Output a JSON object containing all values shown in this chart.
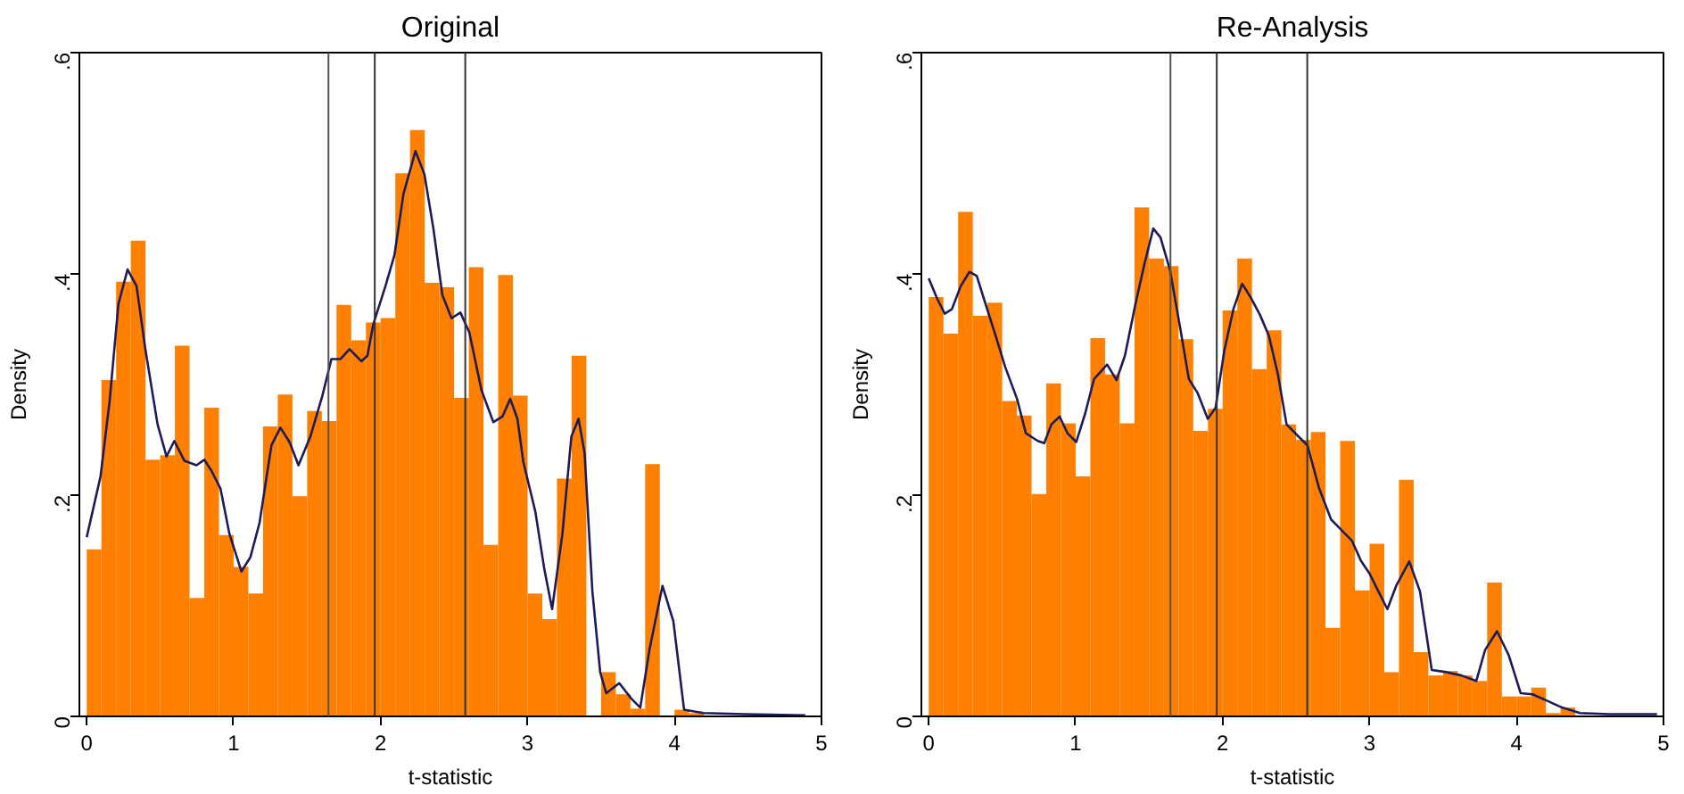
{
  "chart_data": [
    {
      "type": "histogram",
      "title": "Original",
      "xlabel": "t-statistic",
      "ylabel": "Density",
      "color": "#ff7f00",
      "bins": [
        0,
        0.1,
        0.2,
        0.3,
        0.4,
        0.5,
        0.6,
        0.7,
        0.8,
        0.9,
        1.0,
        1.1,
        1.2,
        1.3,
        1.4,
        1.5,
        1.6,
        1.7,
        1.8,
        1.9,
        2.0,
        2.1,
        2.2,
        2.3,
        2.4,
        2.5,
        2.6,
        2.7,
        2.8,
        2.9,
        3.0,
        3.1,
        3.2,
        3.3,
        3.4,
        3.5,
        3.6,
        3.7,
        3.8,
        3.9,
        4.0,
        4.1,
        4.2,
        4.3
      ],
      "values": [
        0.151,
        0.304,
        0.393,
        0.43,
        0.232,
        0.236,
        0.335,
        0.107,
        0.279,
        0.164,
        0.135,
        0.111,
        0.262,
        0.291,
        0.199,
        0.276,
        0.267,
        0.372,
        0.34,
        0.356,
        0.36,
        0.491,
        0.53,
        0.392,
        0.388,
        0.288,
        0.406,
        0.155,
        0.399,
        0.29,
        0.111,
        0.088,
        0.215,
        0.326,
        0,
        0.04,
        0.02,
        0.007,
        0.228,
        0,
        0.006,
        0.003,
        null
      ],
      "series": [
        {
          "type": "line",
          "color": "#1c1c5a",
          "x": [
            0,
            0.094,
            0.155,
            0.216,
            0.278,
            0.339,
            0.4,
            0.482,
            0.543,
            0.596,
            0.665,
            0.747,
            0.8,
            0.849,
            0.91,
            0.971,
            1.053,
            1.114,
            1.176,
            1.257,
            1.318,
            1.38,
            1.441,
            1.522,
            1.604,
            1.665,
            1.727,
            1.788,
            1.869,
            1.91,
            1.951,
            2.033,
            2.094,
            2.155,
            2.237,
            2.298,
            2.359,
            2.42,
            2.482,
            2.543,
            2.604,
            2.686,
            2.767,
            2.829,
            2.882,
            2.931,
            2.971,
            3.053,
            3.114,
            3.167,
            3.237,
            3.298,
            3.347,
            3.388,
            3.441,
            3.494,
            3.535,
            3.624,
            3.706,
            3.767,
            3.829,
            3.918,
            3.992,
            4.065,
            4.196,
            4.482,
            4.89
          ],
          "values": [
            0.162,
            0.217,
            0.284,
            0.373,
            0.404,
            0.389,
            0.331,
            0.264,
            0.235,
            0.249,
            0.231,
            0.227,
            0.232,
            0.222,
            0.206,
            0.165,
            0.131,
            0.144,
            0.175,
            0.245,
            0.261,
            0.248,
            0.227,
            0.253,
            0.29,
            0.323,
            0.323,
            0.332,
            0.321,
            0.326,
            0.355,
            0.389,
            0.417,
            0.472,
            0.511,
            0.49,
            0.441,
            0.381,
            0.36,
            0.365,
            0.347,
            0.295,
            0.266,
            0.271,
            0.287,
            0.269,
            0.23,
            0.185,
            0.133,
            0.097,
            0.165,
            0.253,
            0.269,
            0.238,
            0.113,
            0.04,
            0.021,
            0.03,
            0.016,
            0.008,
            0.06,
            0.118,
            0.086,
            0.006,
            0.003,
            0.002,
            0.001
          ]
        }
      ],
      "ref_lines": [
        {
          "axis": "x",
          "value": 1.645,
          "color": "#555555"
        },
        {
          "axis": "x",
          "value": 1.96,
          "color": "#333333"
        },
        {
          "axis": "x",
          "value": 2.576,
          "color": "#333333"
        }
      ],
      "xlim": [
        -0.05,
        5
      ],
      "xticks": [
        0,
        1,
        2,
        3,
        4,
        5
      ],
      "ylim": [
        0,
        0.6
      ],
      "yticks": [
        0,
        {
          "value": 0.2,
          "label": ".2"
        },
        {
          "value": 0.4,
          "label": ".4"
        },
        {
          "value": 0.6,
          "label": ".6"
        }
      ],
      "grid": false
    },
    {
      "type": "histogram",
      "title": "Re-Analysis",
      "xlabel": "t-statistic",
      "ylabel": "Density",
      "color": "#ff7f00",
      "bins": [
        0,
        0.1,
        0.2,
        0.3,
        0.4,
        0.5,
        0.6,
        0.7,
        0.8,
        0.9,
        1.0,
        1.1,
        1.2,
        1.3,
        1.4,
        1.5,
        1.6,
        1.7,
        1.8,
        1.9,
        2.0,
        2.1,
        2.2,
        2.3,
        2.4,
        2.5,
        2.6,
        2.7,
        2.8,
        2.9,
        3.0,
        3.1,
        3.2,
        3.3,
        3.4,
        3.5,
        3.6,
        3.7,
        3.8,
        3.9,
        4.0,
        4.1,
        4.2,
        4.3,
        4.4,
        4.5,
        4.6,
        4.7,
        4.8
      ],
      "values": [
        0.379,
        0.346,
        0.456,
        0.362,
        0.374,
        0.285,
        0.272,
        0.201,
        0.301,
        0.265,
        0.217,
        0.342,
        0.309,
        0.265,
        0.46,
        0.414,
        0.407,
        0.341,
        0.258,
        0.278,
        0.367,
        0.414,
        0.314,
        0.349,
        0.264,
        0.25,
        0.257,
        0.08,
        0.249,
        0.114,
        0.156,
        0.04,
        0.214,
        0.058,
        0.037,
        0.041,
        0.037,
        0.032,
        0.121,
        0.018,
        0.018,
        0.026,
        0.003,
        0.008,
        null,
        0,
        0,
        null
      ],
      "series": [
        {
          "type": "line",
          "color": "#1c1c5a",
          "x": [
            0,
            0.056,
            0.109,
            0.157,
            0.218,
            0.278,
            0.327,
            0.379,
            0.46,
            0.52,
            0.601,
            0.661,
            0.742,
            0.786,
            0.835,
            0.891,
            0.944,
            1.004,
            1.065,
            1.125,
            1.214,
            1.278,
            1.335,
            1.407,
            1.468,
            1.528,
            1.577,
            1.641,
            1.71,
            1.77,
            1.831,
            1.899,
            1.952,
            2.012,
            2.073,
            2.133,
            2.194,
            2.254,
            2.315,
            2.375,
            2.435,
            2.516,
            2.577,
            2.657,
            2.738,
            2.819,
            2.879,
            2.94,
            3.0,
            3.06,
            3.121,
            3.181,
            3.27,
            3.343,
            3.423,
            3.524,
            3.625,
            3.726,
            3.786,
            3.867,
            3.948,
            4.028,
            4.109,
            4.21,
            4.31,
            4.431,
            4.633,
            4.956
          ],
          "values": [
            0.396,
            0.378,
            0.364,
            0.368,
            0.389,
            0.402,
            0.398,
            0.376,
            0.342,
            0.316,
            0.287,
            0.256,
            0.249,
            0.247,
            0.264,
            0.271,
            0.256,
            0.248,
            0.274,
            0.305,
            0.318,
            0.304,
            0.326,
            0.373,
            0.409,
            0.441,
            0.433,
            0.404,
            0.352,
            0.305,
            0.292,
            0.269,
            0.279,
            0.331,
            0.368,
            0.391,
            0.378,
            0.363,
            0.344,
            0.31,
            0.264,
            0.253,
            0.245,
            0.206,
            0.178,
            0.167,
            0.159,
            0.141,
            0.129,
            0.113,
            0.097,
            0.118,
            0.14,
            0.113,
            0.042,
            0.04,
            0.037,
            0.032,
            0.06,
            0.077,
            0.055,
            0.021,
            0.02,
            0.014,
            0.008,
            0.003,
            0.002,
            0.002
          ]
        }
      ],
      "ref_lines": [
        {
          "axis": "x",
          "value": 1.645,
          "color": "#555555"
        },
        {
          "axis": "x",
          "value": 1.96,
          "color": "#333333"
        },
        {
          "axis": "x",
          "value": 2.576,
          "color": "#333333"
        }
      ],
      "xlim": [
        -0.05,
        5
      ],
      "xticks": [
        0,
        1,
        2,
        3,
        4,
        5
      ],
      "ylim": [
        0,
        0.6
      ],
      "yticks": [
        0,
        {
          "value": 0.2,
          "label": ".2"
        },
        {
          "value": 0.4,
          "label": ".4"
        },
        {
          "value": 0.6,
          "label": ".6"
        }
      ],
      "grid": false
    }
  ]
}
